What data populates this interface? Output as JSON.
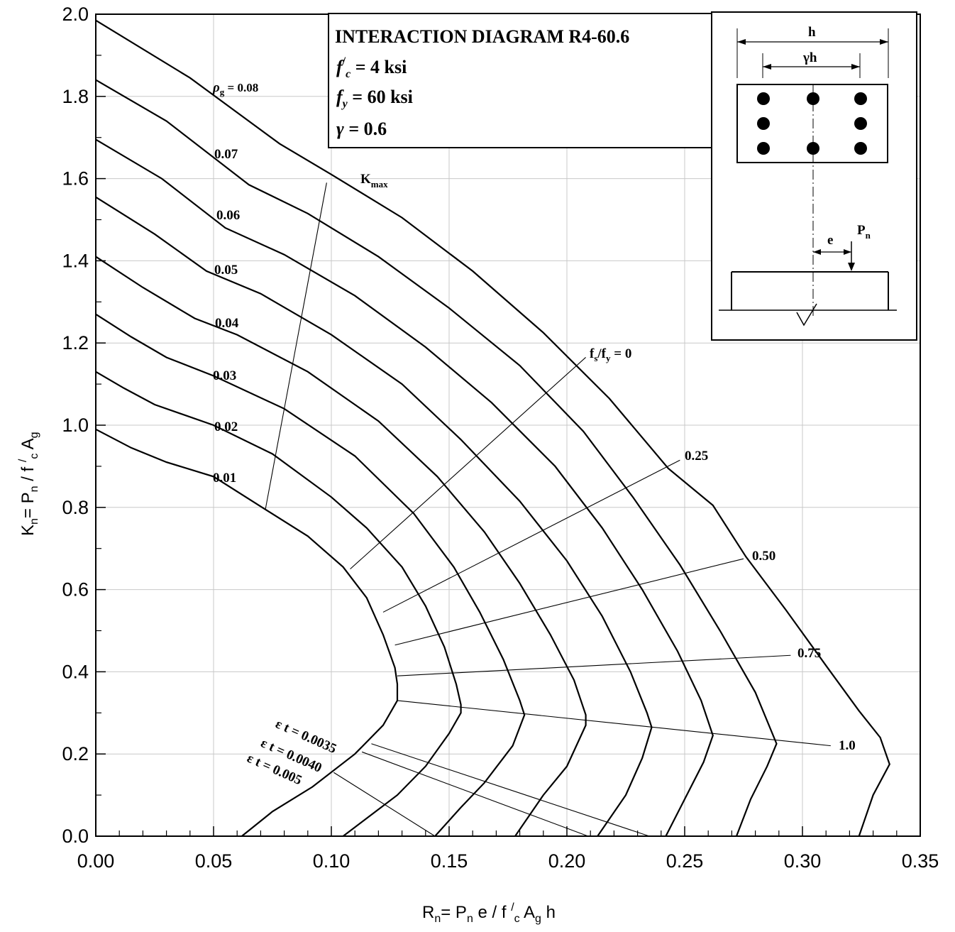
{
  "chart_data": {
    "type": "line",
    "title": "INTERACTION DIAGRAM R4-60.6",
    "subtitle_lines": [
      {
        "sym": "f",
        "sup": "/",
        "sub": "c",
        "rest": " = 4 ksi"
      },
      {
        "sym": "f",
        "sup": "",
        "sub": "y",
        "rest": " = 60 ksi"
      },
      {
        "sym": "γ",
        "sup": "",
        "sub": "",
        "rest": " = 0.6"
      }
    ],
    "xlabel": {
      "a": "R",
      "a_sub": "n",
      "b": "= P",
      "b_sub": "n",
      "c": " e / f ",
      "c_sup": "/",
      "c_sub": "c",
      "d": " A",
      "d_sub": "g",
      "e": " h"
    },
    "ylabel": {
      "a": "K",
      "a_sub": "n",
      "b": "= P",
      "b_sub": "n",
      "c": "  / f ",
      "c_sup": "/",
      "c_sub": "c",
      "d": " A",
      "d_sub": "g"
    },
    "xlim": [
      0,
      0.35
    ],
    "ylim": [
      0,
      2.0
    ],
    "x_ticks": [
      "0.00",
      "0.05",
      "0.10",
      "0.15",
      "0.20",
      "0.25",
      "0.30",
      "0.35"
    ],
    "y_ticks": [
      "0.0",
      "0.2",
      "0.4",
      "0.6",
      "0.8",
      "1.0",
      "1.2",
      "1.4",
      "1.6",
      "1.8",
      "2.0"
    ],
    "grid": true,
    "series": [
      {
        "name": "0.01",
        "points": [
          [
            0,
            0.99
          ],
          [
            0.015,
            0.945
          ],
          [
            0.03,
            0.91
          ],
          [
            0.05,
            0.875
          ],
          [
            0.072,
            0.795
          ],
          [
            0.09,
            0.73
          ],
          [
            0.105,
            0.655
          ],
          [
            0.115,
            0.58
          ],
          [
            0.122,
            0.49
          ],
          [
            0.127,
            0.41
          ],
          [
            0.128,
            0.37
          ],
          [
            0.128,
            0.33
          ],
          [
            0.122,
            0.27
          ],
          [
            0.11,
            0.2
          ],
          [
            0.092,
            0.12
          ],
          [
            0.075,
            0.06
          ],
          [
            0.062,
            0.0
          ]
        ]
      },
      {
        "name": "0.02",
        "points": [
          [
            0,
            1.13
          ],
          [
            0.012,
            1.09
          ],
          [
            0.025,
            1.05
          ],
          [
            0.05,
            1.0
          ],
          [
            0.075,
            0.93
          ],
          [
            0.1,
            0.825
          ],
          [
            0.115,
            0.75
          ],
          [
            0.13,
            0.655
          ],
          [
            0.14,
            0.56
          ],
          [
            0.148,
            0.46
          ],
          [
            0.153,
            0.37
          ],
          [
            0.155,
            0.32
          ],
          [
            0.155,
            0.3
          ],
          [
            0.15,
            0.25
          ],
          [
            0.14,
            0.17
          ],
          [
            0.128,
            0.1
          ],
          [
            0.105,
            0.0
          ]
        ]
      },
      {
        "name": "0.03",
        "points": [
          [
            0,
            1.27
          ],
          [
            0.015,
            1.215
          ],
          [
            0.03,
            1.165
          ],
          [
            0.05,
            1.12
          ],
          [
            0.08,
            1.04
          ],
          [
            0.11,
            0.925
          ],
          [
            0.135,
            0.785
          ],
          [
            0.152,
            0.655
          ],
          [
            0.163,
            0.545
          ],
          [
            0.173,
            0.43
          ],
          [
            0.18,
            0.33
          ],
          [
            0.182,
            0.295
          ],
          [
            0.177,
            0.22
          ],
          [
            0.165,
            0.13
          ],
          [
            0.155,
            0.07
          ],
          [
            0.144,
            0.0
          ]
        ]
      },
      {
        "name": "0.04",
        "points": [
          [
            0,
            1.41
          ],
          [
            0.02,
            1.335
          ],
          [
            0.042,
            1.26
          ],
          [
            0.06,
            1.22
          ],
          [
            0.09,
            1.13
          ],
          [
            0.12,
            1.01
          ],
          [
            0.145,
            0.875
          ],
          [
            0.165,
            0.74
          ],
          [
            0.18,
            0.615
          ],
          [
            0.193,
            0.49
          ],
          [
            0.203,
            0.38
          ],
          [
            0.208,
            0.295
          ],
          [
            0.208,
            0.27
          ],
          [
            0.2,
            0.17
          ],
          [
            0.19,
            0.1
          ],
          [
            0.178,
            0.0
          ]
        ]
      },
      {
        "name": "0.05",
        "points": [
          [
            0,
            1.555
          ],
          [
            0.025,
            1.465
          ],
          [
            0.047,
            1.375
          ],
          [
            0.07,
            1.32
          ],
          [
            0.1,
            1.22
          ],
          [
            0.13,
            1.1
          ],
          [
            0.155,
            0.965
          ],
          [
            0.18,
            0.815
          ],
          [
            0.2,
            0.67
          ],
          [
            0.215,
            0.535
          ],
          [
            0.227,
            0.4
          ],
          [
            0.234,
            0.3
          ],
          [
            0.236,
            0.265
          ],
          [
            0.232,
            0.19
          ],
          [
            0.225,
            0.1
          ],
          [
            0.213,
            0.0
          ]
        ]
      },
      {
        "name": "0.06",
        "points": [
          [
            0,
            1.695
          ],
          [
            0.028,
            1.6
          ],
          [
            0.055,
            1.48
          ],
          [
            0.08,
            1.415
          ],
          [
            0.11,
            1.315
          ],
          [
            0.14,
            1.19
          ],
          [
            0.168,
            1.055
          ],
          [
            0.195,
            0.9
          ],
          [
            0.215,
            0.75
          ],
          [
            0.232,
            0.6
          ],
          [
            0.247,
            0.45
          ],
          [
            0.257,
            0.33
          ],
          [
            0.262,
            0.245
          ],
          [
            0.258,
            0.18
          ],
          [
            0.25,
            0.09
          ],
          [
            0.242,
            0.0
          ]
        ]
      },
      {
        "name": "0.07",
        "points": [
          [
            0,
            1.84
          ],
          [
            0.03,
            1.74
          ],
          [
            0.065,
            1.585
          ],
          [
            0.09,
            1.515
          ],
          [
            0.12,
            1.41
          ],
          [
            0.15,
            1.285
          ],
          [
            0.18,
            1.145
          ],
          [
            0.207,
            0.985
          ],
          [
            0.228,
            0.825
          ],
          [
            0.248,
            0.66
          ],
          [
            0.265,
            0.5
          ],
          [
            0.28,
            0.35
          ],
          [
            0.289,
            0.225
          ],
          [
            0.285,
            0.17
          ],
          [
            0.278,
            0.09
          ],
          [
            0.272,
            0.0
          ]
        ]
      },
      {
        "name": "0.08",
        "points": [
          [
            0,
            1.985
          ],
          [
            0.04,
            1.845
          ],
          [
            0.078,
            1.685
          ],
          [
            0.1,
            1.61
          ],
          [
            0.13,
            1.505
          ],
          [
            0.16,
            1.375
          ],
          [
            0.19,
            1.225
          ],
          [
            0.218,
            1.065
          ],
          [
            0.243,
            0.895
          ],
          [
            0.262,
            0.805
          ],
          [
            0.276,
            0.68
          ],
          [
            0.293,
            0.55
          ],
          [
            0.31,
            0.415
          ],
          [
            0.324,
            0.305
          ],
          [
            0.333,
            0.24
          ],
          [
            0.337,
            0.175
          ],
          [
            0.33,
            0.1
          ],
          [
            0.324,
            0.0
          ]
        ]
      }
    ],
    "kmax_line": [
      [
        0.072,
        0.795
      ],
      [
        0.098,
        1.59
      ]
    ],
    "fs_fy_lines": [
      {
        "label": "0.75",
        "from": [
          0.128,
          0.39
        ],
        "to": [
          0.295,
          0.44
        ]
      },
      {
        "label": "0.50",
        "from": [
          0.127,
          0.465
        ],
        "to": [
          0.275,
          0.675
        ]
      },
      {
        "label": "0.25",
        "from": [
          0.122,
          0.545
        ],
        "to": [
          0.248,
          0.915
        ]
      },
      {
        "label": "1.0",
        "from": [
          0.128,
          0.33
        ],
        "to": [
          0.312,
          0.22
        ]
      }
    ],
    "fs_fy_zero": {
      "label_a": "f",
      "label_a_sub": "s",
      "label_b": "/f",
      "label_b_sub": "y",
      "label_c": " = 0",
      "from": [
        0.108,
        0.65
      ],
      "to": [
        0.208,
        1.165
      ]
    },
    "strain_lines": [
      {
        "label": "ε t = 0.0035",
        "from": [
          0.117,
          0.225
        ],
        "to": [
          0.235,
          0.0
        ]
      },
      {
        "label": "ε t = 0.0040",
        "from": [
          0.113,
          0.205
        ],
        "to": [
          0.209,
          0.0
        ]
      },
      {
        "label": "ε t = 0.005",
        "from": [
          0.101,
          0.155
        ],
        "to": [
          0.144,
          0.0
        ]
      }
    ],
    "labels": {
      "rho": "ρ",
      "rho_sub": "g",
      "rho_val": " = 0.08",
      "kmax": "K",
      "kmax_sub": "max"
    }
  },
  "inset": {
    "dim_h": "h",
    "dim_gamma": "γh",
    "e": "e",
    "p": "P",
    "p_sub": "n"
  }
}
